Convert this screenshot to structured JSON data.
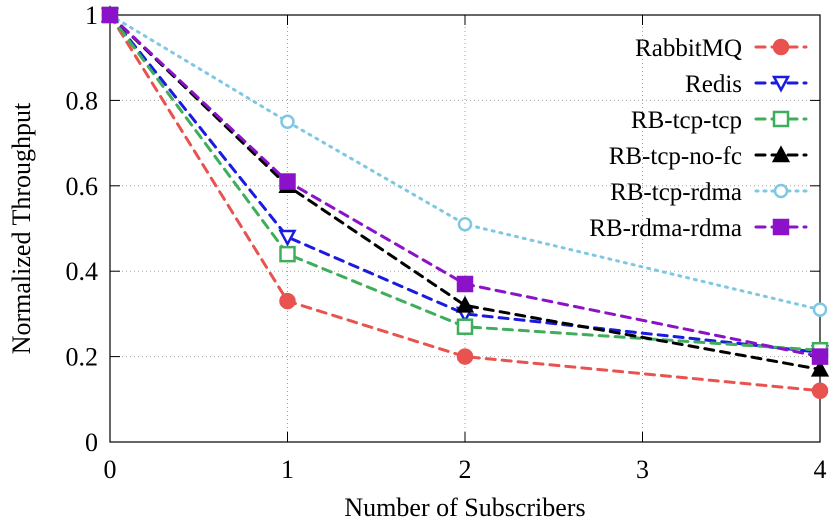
{
  "chart_data": {
    "type": "line",
    "xlabel": "Number of Subscribers",
    "ylabel": "Normalized Throughput",
    "xlim": [
      0,
      4
    ],
    "ylim": [
      0,
      1
    ],
    "xticks": [
      "0",
      "1",
      "2",
      "3",
      "4"
    ],
    "yticks": [
      "0",
      "0.2",
      "0.4",
      "0.6",
      "0.8",
      "1"
    ],
    "grid": true,
    "legend_position": "top-right",
    "x": [
      0,
      1,
      2,
      4
    ],
    "series": [
      {
        "name": "RabbitMQ",
        "values": [
          1.0,
          0.33,
          0.2,
          0.12
        ],
        "color": "#e8534f",
        "marker": "circle-filled",
        "dash": "dashed"
      },
      {
        "name": "Redis",
        "values": [
          1.0,
          0.48,
          0.3,
          0.21
        ],
        "color": "#1a1ae0",
        "marker": "triangle-down-open",
        "dash": "dashed"
      },
      {
        "name": "RB-tcp-tcp",
        "values": [
          1.0,
          0.44,
          0.27,
          0.215
        ],
        "color": "#3fae5c",
        "marker": "square-open",
        "dash": "dashed"
      },
      {
        "name": "RB-tcp-no-fc",
        "values": [
          1.0,
          0.6,
          0.32,
          0.17
        ],
        "color": "#000000",
        "marker": "triangle-up-filled",
        "dash": "dashed"
      },
      {
        "name": "RB-tcp-rdma",
        "values": [
          1.0,
          0.75,
          0.51,
          0.31
        ],
        "color": "#7ec8e3",
        "marker": "circle-open",
        "dash": "dotted"
      },
      {
        "name": "RB-rdma-rdma",
        "values": [
          1.0,
          0.61,
          0.37,
          0.2
        ],
        "color": "#8b12c9",
        "marker": "square-filled",
        "dash": "dashed"
      }
    ]
  }
}
